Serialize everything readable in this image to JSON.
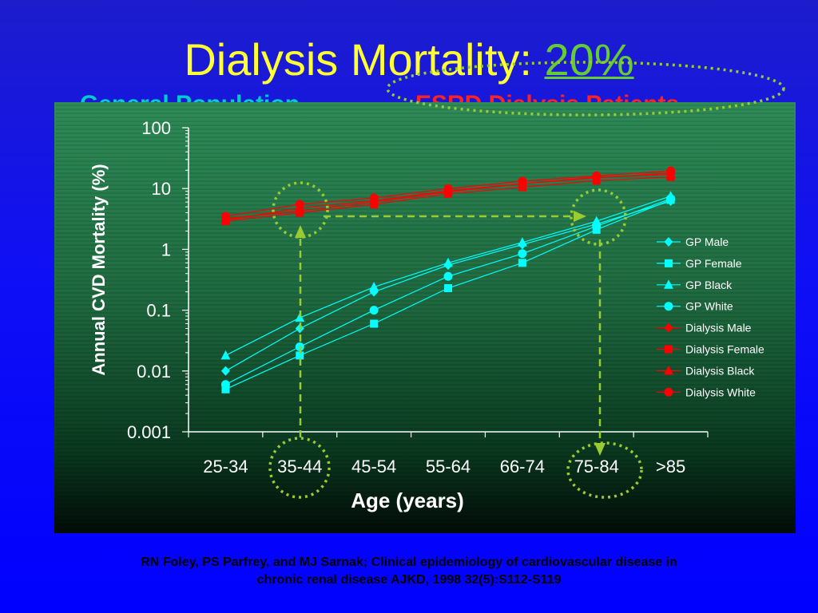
{
  "slide": {
    "title_prefix": "Dialysis Mortality: ",
    "title_highlight": "20%",
    "subtitle_left": "General Population",
    "subtitle_right": "ESRD Dialysis Patients",
    "citation_line1": "RN Foley, PS Parfrey, and MJ Sarnak; Clinical epidemiology of cardiovascular disease in",
    "citation_line2": "chronic renal disease  AJKD, 1998 32(5):S112-S119"
  },
  "colors": {
    "title": "#ffff33",
    "highlight": "#66cc33",
    "gp_series": "#00ffff",
    "dialysis_series": "#ff0000",
    "annotation": "#99cc33",
    "chart_bg_top": "#2e8b57",
    "chart_bg_bottom": "#020c08"
  },
  "chart_data": {
    "type": "line",
    "title": "",
    "xlabel": "Age (years)",
    "ylabel": "Annual CVD Mortality (%)",
    "y_scale": "log",
    "ylim": [
      0.001,
      100
    ],
    "y_ticks": [
      "100",
      "10",
      "1",
      "0.1",
      "0.01",
      "0.001"
    ],
    "categories": [
      "25-34",
      "35-44",
      "45-54",
      "55-64",
      "66-74",
      "75-84",
      ">85"
    ],
    "legend_position": "right",
    "series": [
      {
        "name": "GP Male",
        "group": "gp",
        "marker": "diamond",
        "values": [
          0.01,
          0.05,
          0.2,
          0.55,
          1.2,
          2.6,
          6.2
        ]
      },
      {
        "name": "GP Female",
        "group": "gp",
        "marker": "square",
        "values": [
          0.005,
          0.018,
          0.06,
          0.23,
          0.6,
          2.1,
          6.5
        ]
      },
      {
        "name": "GP Black",
        "group": "gp",
        "marker": "triangle",
        "values": [
          0.018,
          0.075,
          0.24,
          0.6,
          1.3,
          2.9,
          7.5
        ]
      },
      {
        "name": "GP White",
        "group": "gp",
        "marker": "circle",
        "values": [
          0.006,
          0.025,
          0.1,
          0.36,
          0.85,
          2.4,
          6.8
        ]
      },
      {
        "name": "Dialysis Male",
        "group": "dialysis",
        "marker": "diamond",
        "values": [
          3.2,
          4.3,
          6.0,
          8.8,
          12.0,
          15.0,
          18.0
        ]
      },
      {
        "name": "Dialysis Female",
        "group": "dialysis",
        "marker": "square",
        "values": [
          2.9,
          4.0,
          5.5,
          8.2,
          10.5,
          13.5,
          15.5
        ]
      },
      {
        "name": "Dialysis Black",
        "group": "dialysis",
        "marker": "triangle",
        "values": [
          3.0,
          4.8,
          6.3,
          9.2,
          12.0,
          15.5,
          17.0
        ]
      },
      {
        "name": "Dialysis White",
        "group": "dialysis",
        "marker": "circle",
        "values": [
          3.5,
          5.5,
          7.0,
          10.0,
          13.2,
          16.2,
          19.5
        ]
      }
    ]
  }
}
